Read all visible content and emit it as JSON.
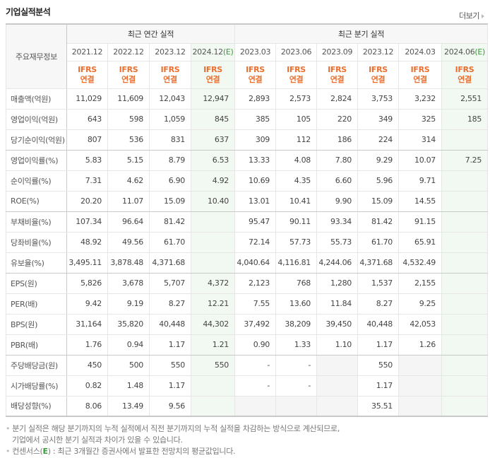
{
  "section": {
    "title": "기업실적분석",
    "more_label": "더보기"
  },
  "table": {
    "label_header": "주요재무정보",
    "groups": {
      "annual": "최근 연간 실적",
      "quarterly": "최근 분기 실적"
    },
    "periods": [
      {
        "label": "2021.12",
        "estimate": false,
        "type": "annual"
      },
      {
        "label": "2022.12",
        "estimate": false,
        "type": "annual"
      },
      {
        "label": "2023.12",
        "estimate": false,
        "type": "annual"
      },
      {
        "label": "2024.12",
        "estimate": true,
        "type": "annual"
      },
      {
        "label": "2023.03",
        "estimate": false,
        "type": "quarterly"
      },
      {
        "label": "2023.06",
        "estimate": false,
        "type": "quarterly"
      },
      {
        "label": "2023.09",
        "estimate": false,
        "type": "quarterly"
      },
      {
        "label": "2023.12",
        "estimate": false,
        "type": "quarterly"
      },
      {
        "label": "2024.03",
        "estimate": false,
        "type": "quarterly"
      },
      {
        "label": "2024.06",
        "estimate": true,
        "type": "quarterly"
      }
    ],
    "estimate_mark": "(E)",
    "ifrs_line1": "IFRS",
    "ifrs_line2": "연결",
    "rows": [
      {
        "label": "매출액(억원)",
        "values": [
          "11,029",
          "11,609",
          "12,043",
          "12,947",
          "2,893",
          "2,573",
          "2,824",
          "3,753",
          "3,232",
          "2,551"
        ]
      },
      {
        "label": "영업이익(억원)",
        "values": [
          "643",
          "598",
          "1,059",
          "845",
          "385",
          "105",
          "220",
          "349",
          "325",
          "185"
        ]
      },
      {
        "label": "당기순이익(억원)",
        "values": [
          "807",
          "536",
          "831",
          "637",
          "309",
          "112",
          "186",
          "224",
          "314",
          ""
        ]
      },
      {
        "label": "영업이익률(%)",
        "values": [
          "5.83",
          "5.15",
          "8.79",
          "6.53",
          "13.33",
          "4.08",
          "7.80",
          "9.29",
          "10.07",
          "7.25"
        ]
      },
      {
        "label": "순이익률(%)",
        "values": [
          "7.31",
          "4.62",
          "6.90",
          "4.92",
          "10.69",
          "4.35",
          "6.60",
          "5.96",
          "9.71",
          ""
        ]
      },
      {
        "label": "ROE(%)",
        "values": [
          "20.20",
          "11.07",
          "15.09",
          "10.40",
          "13.01",
          "10.41",
          "9.90",
          "15.09",
          "14.55",
          ""
        ]
      },
      {
        "label": "부채비율(%)",
        "values": [
          "107.34",
          "96.64",
          "81.42",
          "",
          "95.47",
          "90.11",
          "93.34",
          "81.42",
          "91.15",
          ""
        ]
      },
      {
        "label": "당좌비율(%)",
        "values": [
          "48.92",
          "49.56",
          "61.70",
          "",
          "72.14",
          "57.73",
          "55.73",
          "61.70",
          "65.91",
          ""
        ]
      },
      {
        "label": "유보율(%)",
        "values": [
          "3,495.11",
          "3,878.48",
          "4,371.68",
          "",
          "4,040.64",
          "4,116.81",
          "4,244.06",
          "4,371.68",
          "4,532.49",
          ""
        ]
      },
      {
        "label": "EPS(원)",
        "values": [
          "5,826",
          "3,678",
          "5,707",
          "4,372",
          "2,123",
          "768",
          "1,280",
          "1,537",
          "2,155",
          ""
        ]
      },
      {
        "label": "PER(배)",
        "values": [
          "9.42",
          "9.19",
          "8.27",
          "12.21",
          "7.55",
          "13.60",
          "11.84",
          "8.27",
          "9.25",
          ""
        ]
      },
      {
        "label": "BPS(원)",
        "values": [
          "31,164",
          "35,820",
          "40,448",
          "44,302",
          "37,492",
          "38,209",
          "39,450",
          "40,448",
          "42,053",
          ""
        ]
      },
      {
        "label": "PBR(배)",
        "values": [
          "1.76",
          "0.94",
          "1.17",
          "1.21",
          "0.90",
          "1.33",
          "1.10",
          "1.17",
          "1.26",
          ""
        ]
      },
      {
        "label": "주당배당금(원)",
        "values": [
          "450",
          "500",
          "550",
          "550",
          "-",
          "-",
          "",
          "550",
          "",
          ""
        ]
      },
      {
        "label": "시가배당률(%)",
        "values": [
          "0.82",
          "1.48",
          "1.17",
          "",
          "-",
          "-",
          "",
          "1.17",
          "",
          ""
        ]
      },
      {
        "label": "배당성향(%)",
        "values": [
          "8.06",
          "13.49",
          "9.56",
          "",
          "",
          "",
          "",
          "35.51",
          "",
          ""
        ]
      }
    ],
    "separator_after_rows": [
      2,
      5,
      8,
      12
    ]
  },
  "notes": {
    "line1": "분기 실적은 해당 분기까지의 누적 실적에서 직전 분기까지의 누적 실적을 차감하는 방식으로 계산되므로,",
    "line2": "기업에서 공시한 분기 실적과 차이가 있을 수 있습니다.",
    "line3_prefix": "컨센서스(",
    "line3_mark": "E",
    "line3_suffix": ") : 최근 3개월간 증권사에서 발표한 전망치의 평균값입니다."
  },
  "colors": {
    "ifrs": "#e96f2e",
    "estimate_mark": "#3a9a3a",
    "estimate_column_bg": "#f2f8f2",
    "empty_cell_bg": "#f5f5f5",
    "border_strong": "#c9c9c9",
    "border_light": "#e6e6e6"
  }
}
